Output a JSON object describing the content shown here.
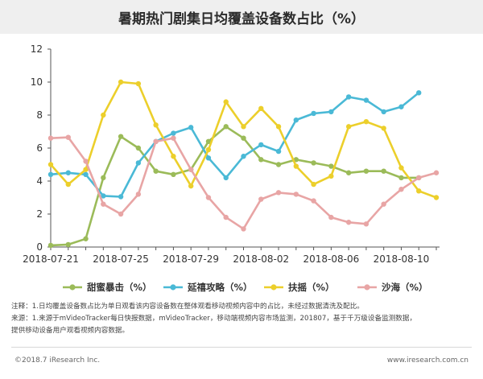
{
  "title": "暑期热门剧集日均覆盖设备数占比（%）",
  "chart_data": {
    "type": "line",
    "title": "暑期热门剧集日均覆盖设备数占比（%）",
    "x": [
      "2018-07-21",
      "2018-07-22",
      "2018-07-23",
      "2018-07-24",
      "2018-07-25",
      "2018-07-26",
      "2018-07-27",
      "2018-07-28",
      "2018-07-29",
      "2018-07-30",
      "2018-07-31",
      "2018-08-01",
      "2018-08-02",
      "2018-08-03",
      "2018-08-04",
      "2018-08-05",
      "2018-08-06",
      "2018-08-07",
      "2018-08-08",
      "2018-08-09",
      "2018-08-10",
      "2018-08-11",
      "2018-08-12"
    ],
    "x_tick_labels": [
      "2018-07-21",
      "2018-07-25",
      "2018-07-29",
      "2018-08-02",
      "2018-08-06",
      "2018-08-10"
    ],
    "ylim": [
      0,
      12
    ],
    "y_ticks": [
      0,
      2,
      4,
      6,
      8,
      10,
      12
    ],
    "grid": false,
    "legend_position": "bottom",
    "series": [
      {
        "name": "甜蜜暴击（%）",
        "color": "#9bbb59",
        "values": [
          0.1,
          0.15,
          0.5,
          4.2,
          6.7,
          6.0,
          4.6,
          4.4,
          4.7,
          6.4,
          7.3,
          6.6,
          5.3,
          5.0,
          5.3,
          5.1,
          4.9,
          4.5,
          4.6,
          4.6,
          4.2,
          4.2,
          null
        ]
      },
      {
        "name": "延禧攻略（%）",
        "color": "#4ab9d6",
        "values": [
          4.4,
          4.5,
          4.4,
          3.1,
          3.05,
          5.1,
          6.4,
          6.9,
          7.25,
          5.4,
          4.2,
          5.5,
          6.2,
          5.8,
          7.7,
          8.1,
          8.2,
          9.1,
          8.9,
          8.2,
          8.5,
          9.35,
          null
        ]
      },
      {
        "name": "扶摇（%）",
        "color": "#eccf2b",
        "values": [
          5.0,
          3.8,
          4.7,
          8.0,
          10.0,
          9.9,
          7.4,
          5.5,
          3.7,
          5.9,
          8.8,
          7.3,
          8.4,
          7.3,
          4.9,
          3.8,
          4.3,
          7.3,
          7.6,
          7.2,
          4.8,
          3.4,
          3.0
        ]
      },
      {
        "name": "沙海（%）",
        "color": "#e8a5a5",
        "values": [
          6.6,
          6.65,
          5.2,
          2.6,
          2.0,
          3.2,
          6.4,
          6.6,
          4.7,
          3.0,
          1.8,
          1.1,
          2.9,
          3.3,
          3.2,
          2.8,
          1.8,
          1.5,
          1.4,
          2.6,
          3.5,
          4.2,
          4.5
        ]
      }
    ]
  },
  "legend": {
    "items": [
      "甜蜜暴击（%）",
      "延禧攻略（%）",
      "扶摇（%）",
      "沙海（%）"
    ]
  },
  "notes": {
    "line1": "注释：1.日均覆盖设备数占比为单日观看该内容设备数在整体观看移动视频内容中的占比，未经过数据清洗及配比。",
    "line2": "来源：1.来源于mVideoTracker每日快报数据，mVideoTracker，移动端视频内容市场监测，201807，基于千万级设备监测数据，",
    "line3": "提供移动设备用户观看视频内容数据。"
  },
  "footer": {
    "copyright": "©2018.7 iResearch Inc.",
    "website": "www.iresearch.com.cn"
  }
}
